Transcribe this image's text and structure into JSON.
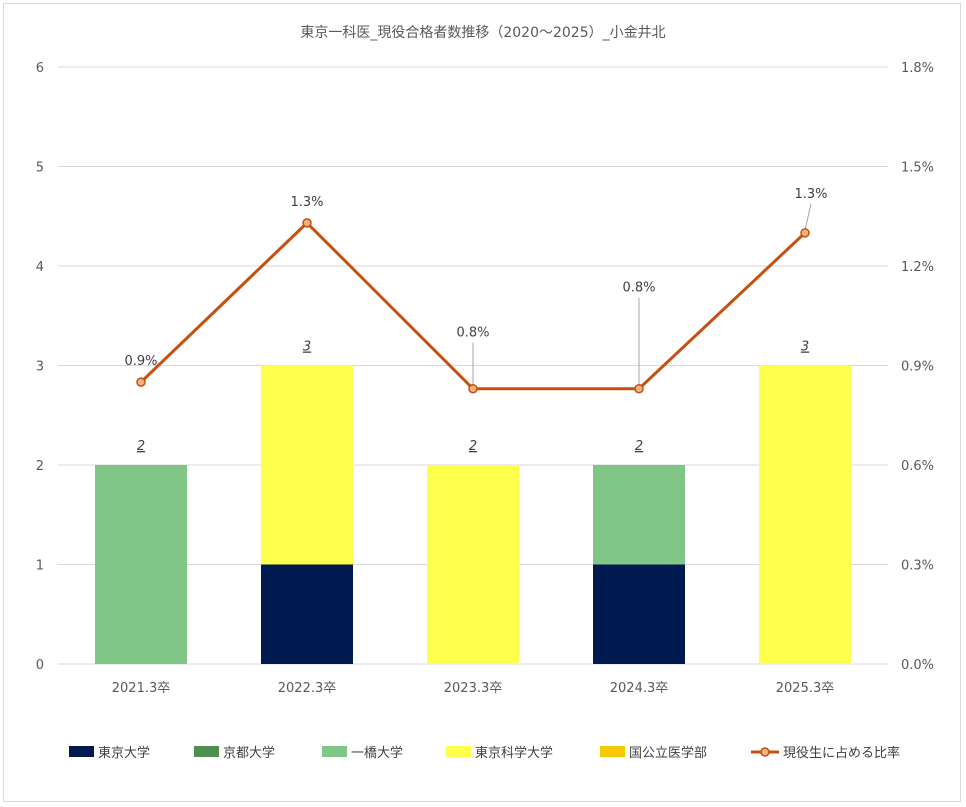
{
  "chart_data": {
    "type": "bar",
    "title": "東京一科医_現役合格者数推移（2020～2025）_小金井北",
    "categories": [
      "2021.3卒",
      "2022.3卒",
      "2023.3卒",
      "2024.3卒",
      "2025.3卒"
    ],
    "series": [
      {
        "name": "東京大学",
        "color": "#001a4f",
        "values": [
          0,
          1,
          0,
          1,
          0
        ]
      },
      {
        "name": "京都大学",
        "color": "#4f8f4f",
        "values": [
          0,
          0,
          0,
          0,
          0
        ]
      },
      {
        "name": "一橋大学",
        "color": "#80c787",
        "values": [
          2,
          0,
          0,
          1,
          0
        ]
      },
      {
        "name": "東京科学大学",
        "color": "#ffff4d",
        "values": [
          0,
          2,
          2,
          0,
          3
        ]
      },
      {
        "name": "国公立医学部",
        "color": "#f5c800",
        "values": [
          0,
          0,
          0,
          0,
          0
        ]
      }
    ],
    "totals": [
      "2",
      "3",
      "2",
      "2",
      "3"
    ],
    "line_series": {
      "name": "現役生に占める比率",
      "color": "#c5500f",
      "values": [
        0.0085,
        0.0133,
        0.0083,
        0.0083,
        0.013
      ],
      "labels": [
        "0.9%",
        "1.3%",
        "0.8%",
        "0.8%",
        "1.3%"
      ]
    },
    "ylim": [
      0,
      6
    ],
    "yticks": [
      "0",
      "1",
      "2",
      "3",
      "4",
      "5",
      "6"
    ],
    "y2lim": [
      0,
      0.018
    ],
    "y2ticks": [
      "0.0%",
      "0.3%",
      "0.6%",
      "0.9%",
      "1.2%",
      "1.5%",
      "1.8%"
    ],
    "legend_position": "bottom",
    "grid": true
  }
}
